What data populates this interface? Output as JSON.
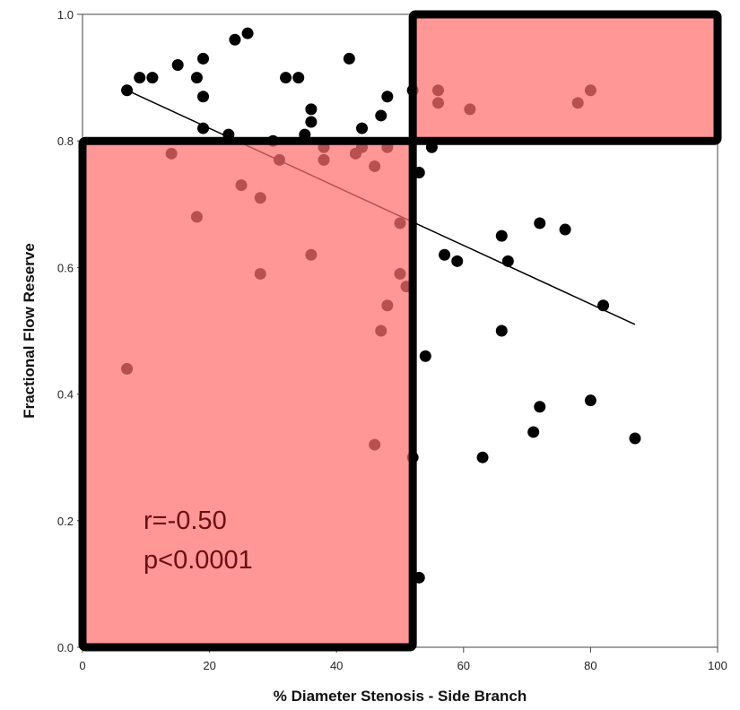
{
  "chart_data": {
    "type": "scatter",
    "title": "",
    "xlabel": "% Diameter Stenosis - Side Branch",
    "ylabel": "Fractional Flow Reserve",
    "xlim": [
      0,
      100
    ],
    "ylim": [
      0,
      1.0
    ],
    "x_ticks": [
      "0",
      "20",
      "40",
      "60",
      "80",
      "100"
    ],
    "y_ticks": [
      "0.0",
      "0.2",
      "0.4",
      "0.6",
      "0.8",
      "1.0"
    ],
    "grid": false,
    "points": [
      {
        "x": 7,
        "y": 0.88
      },
      {
        "x": 9,
        "y": 0.9
      },
      {
        "x": 11,
        "y": 0.9
      },
      {
        "x": 15,
        "y": 0.92
      },
      {
        "x": 18,
        "y": 0.9
      },
      {
        "x": 19,
        "y": 0.93
      },
      {
        "x": 19,
        "y": 0.87
      },
      {
        "x": 24,
        "y": 0.96
      },
      {
        "x": 26,
        "y": 0.97
      },
      {
        "x": 32,
        "y": 0.9
      },
      {
        "x": 34,
        "y": 0.9
      },
      {
        "x": 36,
        "y": 0.85
      },
      {
        "x": 36,
        "y": 0.83
      },
      {
        "x": 42,
        "y": 0.93
      },
      {
        "x": 44,
        "y": 0.82
      },
      {
        "x": 47,
        "y": 0.84
      },
      {
        "x": 48,
        "y": 0.87
      },
      {
        "x": 52,
        "y": 0.88
      },
      {
        "x": 56,
        "y": 0.88
      },
      {
        "x": 56,
        "y": 0.86
      },
      {
        "x": 61,
        "y": 0.85
      },
      {
        "x": 78,
        "y": 0.86
      },
      {
        "x": 80,
        "y": 0.88
      },
      {
        "x": 19,
        "y": 0.82
      },
      {
        "x": 23,
        "y": 0.81
      },
      {
        "x": 30,
        "y": 0.8
      },
      {
        "x": 35,
        "y": 0.81
      },
      {
        "x": 38,
        "y": 0.79
      },
      {
        "x": 43,
        "y": 0.78
      },
      {
        "x": 44,
        "y": 0.79
      },
      {
        "x": 48,
        "y": 0.79
      },
      {
        "x": 14,
        "y": 0.78
      },
      {
        "x": 31,
        "y": 0.77
      },
      {
        "x": 38,
        "y": 0.77
      },
      {
        "x": 46,
        "y": 0.76
      },
      {
        "x": 55,
        "y": 0.79
      },
      {
        "x": 53,
        "y": 0.75
      },
      {
        "x": 25,
        "y": 0.73
      },
      {
        "x": 28,
        "y": 0.71
      },
      {
        "x": 18,
        "y": 0.68
      },
      {
        "x": 50,
        "y": 0.67
      },
      {
        "x": 28,
        "y": 0.59
      },
      {
        "x": 36,
        "y": 0.62
      },
      {
        "x": 57,
        "y": 0.62
      },
      {
        "x": 59,
        "y": 0.61
      },
      {
        "x": 66,
        "y": 0.65
      },
      {
        "x": 67,
        "y": 0.61
      },
      {
        "x": 72,
        "y": 0.67
      },
      {
        "x": 76,
        "y": 0.66
      },
      {
        "x": 50,
        "y": 0.59
      },
      {
        "x": 51,
        "y": 0.57
      },
      {
        "x": 48,
        "y": 0.54
      },
      {
        "x": 47,
        "y": 0.5
      },
      {
        "x": 66,
        "y": 0.5
      },
      {
        "x": 82,
        "y": 0.54
      },
      {
        "x": 54,
        "y": 0.46
      },
      {
        "x": 7,
        "y": 0.44
      },
      {
        "x": 72,
        "y": 0.38
      },
      {
        "x": 80,
        "y": 0.39
      },
      {
        "x": 71,
        "y": 0.34
      },
      {
        "x": 87,
        "y": 0.33
      },
      {
        "x": 46,
        "y": 0.32
      },
      {
        "x": 52,
        "y": 0.3
      },
      {
        "x": 63,
        "y": 0.3
      },
      {
        "x": 53,
        "y": 0.11
      }
    ],
    "regression_line": {
      "x": [
        7,
        87
      ],
      "y": [
        0.88,
        0.51
      ]
    },
    "annotations": {
      "r": "r=-0.50",
      "p": "p<0.0001"
    },
    "highlight_regions": [
      {
        "x": [
          0,
          52
        ],
        "y": [
          0,
          0.8
        ],
        "color": "#ff6f6f"
      },
      {
        "x": [
          52,
          100
        ],
        "y": [
          0.8,
          1.0
        ],
        "color": "#ff6f6f"
      }
    ],
    "colors": {
      "point": "#000000",
      "highlight_fill": "#ff6f6f",
      "highlight_border": "#000000",
      "text": "#6b0f0f"
    }
  }
}
